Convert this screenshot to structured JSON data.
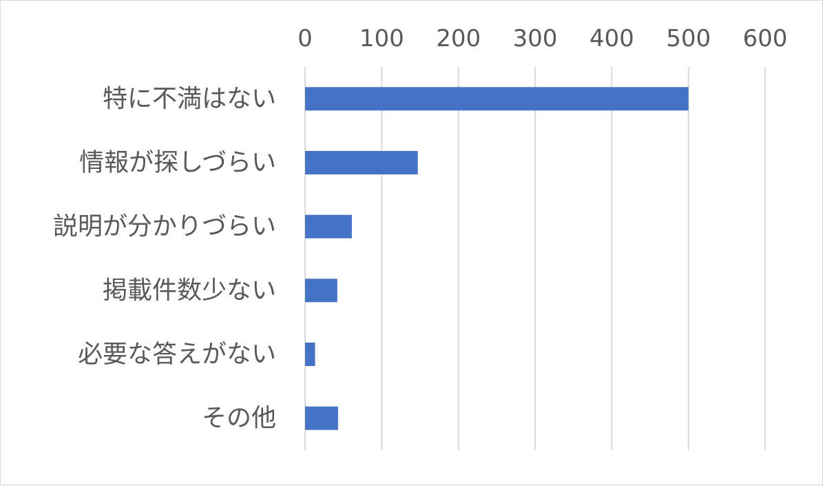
{
  "chart_data": {
    "type": "bar",
    "orientation": "horizontal",
    "categories": [
      "特に不満はない",
      "情報が探しづらい",
      "説明が分かりづらい",
      "掲載件数少ない",
      "必要な答えがない",
      "その他"
    ],
    "values": [
      500,
      147,
      61,
      42,
      13,
      43
    ],
    "xlim": [
      0,
      600
    ],
    "xticks": [
      "0",
      "100",
      "200",
      "300",
      "400",
      "500",
      "600"
    ],
    "x_axis_position": "top",
    "grid": true,
    "legend": "none",
    "colors": {
      "bar": "#4472c4",
      "grid": "#d9d9d9",
      "text": "#595959",
      "border": "#d9d9d9"
    }
  }
}
